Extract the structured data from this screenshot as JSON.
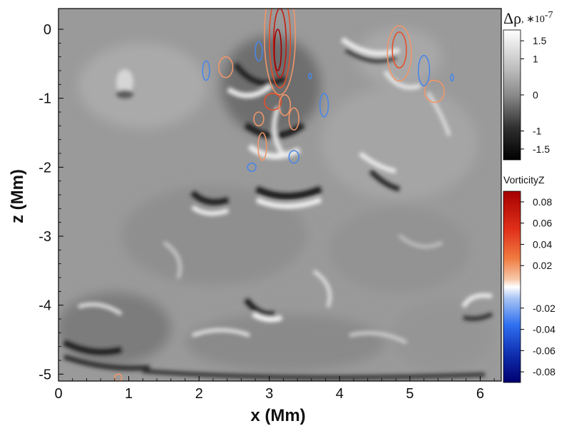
{
  "chart_data": {
    "type": "heatmap",
    "title": "",
    "xlabel": "x (Mm)",
    "ylabel": "z (Mm)",
    "xlim": [
      0,
      6.3
    ],
    "ylim": [
      -5.1,
      0.3
    ],
    "xticks": [
      0,
      1,
      2,
      3,
      4,
      5,
      6
    ],
    "yticks": [
      0,
      -1,
      -2,
      -3,
      -4,
      -5
    ],
    "xtick_labels": [
      "0",
      "1",
      "2",
      "3",
      "4",
      "5",
      "6"
    ],
    "ytick_labels": [
      "0",
      "-1",
      "-2",
      "-3",
      "-4",
      "-5"
    ],
    "background_field": {
      "name": "Δρ",
      "exponent_label": ", ∗10",
      "exponent_power": "-7",
      "colormap": "grayscale",
      "range": [
        -1.8,
        1.8
      ],
      "ticks": [
        1.5,
        1,
        0,
        -1,
        -1.5
      ],
      "tick_labels": [
        "1.5",
        "1",
        "0",
        "-1",
        "-1.5"
      ]
    },
    "contour_field": {
      "name": "VorticityZ",
      "colormap": "blue-white-red",
      "range": [
        -0.09,
        0.09
      ],
      "ticks": [
        0.08,
        0.06,
        0.04,
        0.02,
        -0.02,
        -0.04,
        -0.06,
        -0.08
      ],
      "tick_labels": [
        "0.08",
        "0.06",
        "0.04",
        "0.02",
        "-0.02",
        "-0.04",
        "-0.06",
        "-0.08"
      ],
      "positive_contours": [
        {
          "x": 3.15,
          "z": -0.1,
          "rx": 0.22,
          "rz": 0.85,
          "level": 0.02
        },
        {
          "x": 3.15,
          "z": -0.15,
          "rx": 0.15,
          "rz": 0.7,
          "level": 0.04
        },
        {
          "x": 3.15,
          "z": -0.2,
          "rx": 0.09,
          "rz": 0.5,
          "level": 0.06
        },
        {
          "x": 3.12,
          "z": -0.3,
          "rx": 0.05,
          "rz": 0.3,
          "level": 0.08
        },
        {
          "x": 4.85,
          "z": -0.35,
          "rx": 0.17,
          "rz": 0.4,
          "level": 0.02
        },
        {
          "x": 4.85,
          "z": -0.3,
          "rx": 0.1,
          "rz": 0.26,
          "level": 0.04
        },
        {
          "x": 2.38,
          "z": -0.55,
          "rx": 0.1,
          "rz": 0.15,
          "level": 0.02
        },
        {
          "x": 3.05,
          "z": -1.05,
          "rx": 0.12,
          "rz": 0.12,
          "level": 0.04
        },
        {
          "x": 2.85,
          "z": -1.3,
          "rx": 0.07,
          "rz": 0.1,
          "level": 0.02
        },
        {
          "x": 3.35,
          "z": -1.3,
          "rx": 0.07,
          "rz": 0.16,
          "level": 0.02
        },
        {
          "x": 2.9,
          "z": -1.7,
          "rx": 0.06,
          "rz": 0.2,
          "level": 0.02
        },
        {
          "x": 5.35,
          "z": -0.9,
          "rx": 0.14,
          "rz": 0.16,
          "level": 0.02
        },
        {
          "x": 3.22,
          "z": -1.1,
          "rx": 0.08,
          "rz": 0.15,
          "level": 0.02
        },
        {
          "x": 0.85,
          "z": -5.05,
          "rx": 0.05,
          "rz": 0.05,
          "level": 0.02
        }
      ],
      "negative_contours": [
        {
          "x": 2.85,
          "z": -0.32,
          "rx": 0.05,
          "rz": 0.14,
          "level": -0.02
        },
        {
          "x": 2.1,
          "z": -0.6,
          "rx": 0.05,
          "rz": 0.14,
          "level": -0.02
        },
        {
          "x": 3.78,
          "z": -1.1,
          "rx": 0.06,
          "rz": 0.17,
          "level": -0.02
        },
        {
          "x": 3.35,
          "z": -1.85,
          "rx": 0.07,
          "rz": 0.09,
          "level": -0.02
        },
        {
          "x": 2.75,
          "z": -2.0,
          "rx": 0.06,
          "rz": 0.06,
          "level": -0.02
        },
        {
          "x": 5.2,
          "z": -0.6,
          "rx": 0.08,
          "rz": 0.22,
          "level": -0.02
        },
        {
          "x": 5.6,
          "z": -0.7,
          "rx": 0.02,
          "rz": 0.05,
          "level": -0.02
        },
        {
          "x": 3.58,
          "z": -0.68,
          "rx": 0.02,
          "rz": 0.04,
          "level": -0.02
        }
      ]
    }
  }
}
